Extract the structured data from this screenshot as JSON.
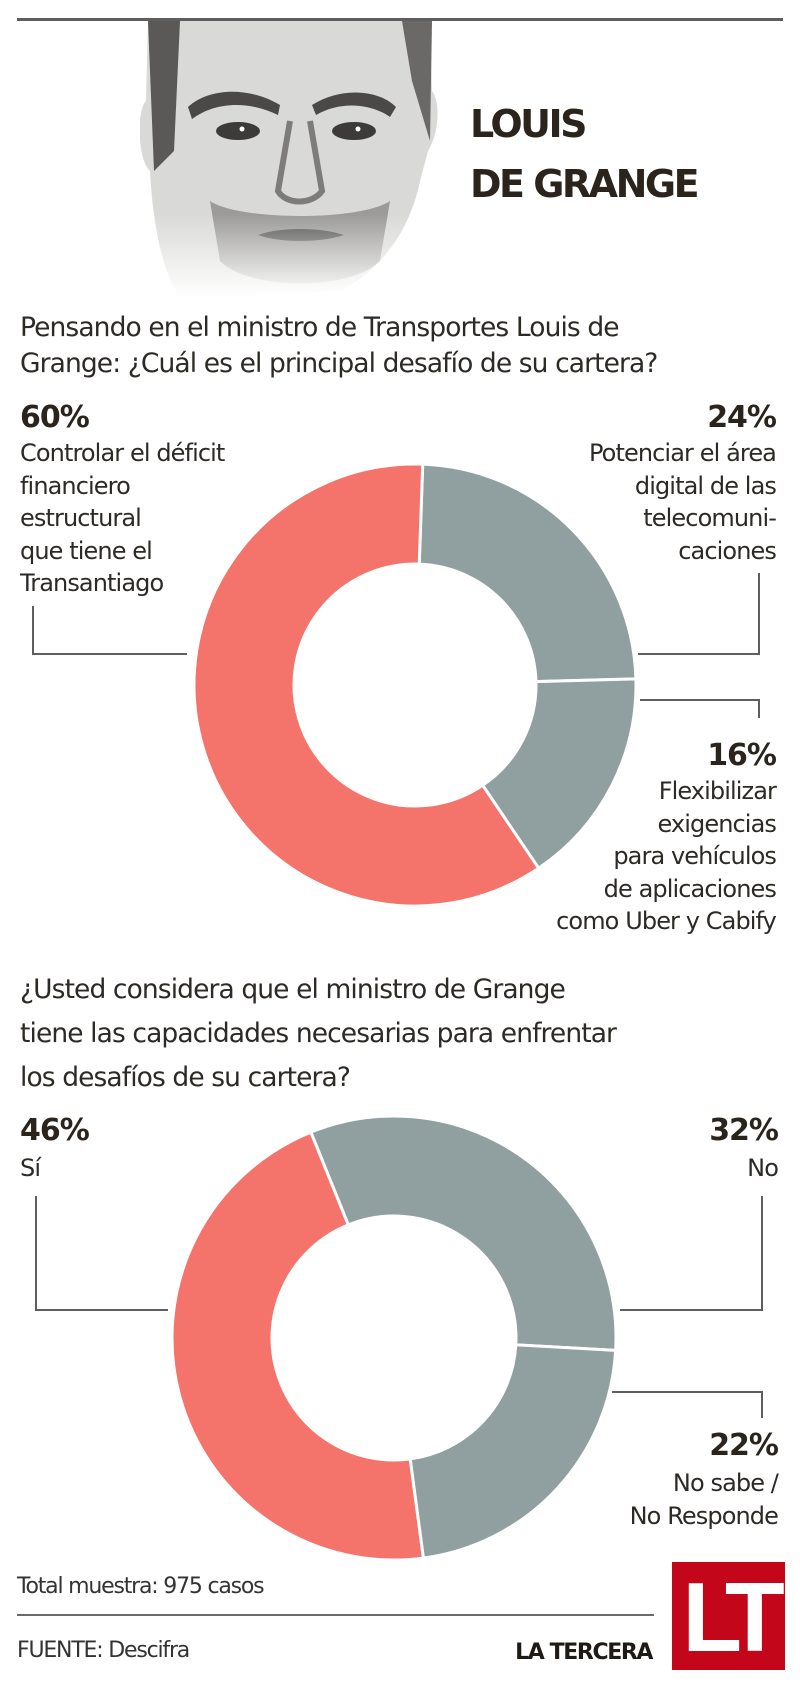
{
  "header": {
    "title_line1": "LOUIS",
    "title_line2": "DE GRANGE",
    "portrait": "portrait-illustration"
  },
  "colors": {
    "accent_red": "#f4736b",
    "slate_grey": "#90a0a0",
    "brand_red": "#c4061b",
    "text": "#2d2a26"
  },
  "chart_data": [
    {
      "type": "pie",
      "variant": "donut",
      "title": "Pensando en el ministro de Transportes Louis de Grange: ¿Cuál es el principal desafío de su cartera?",
      "title_lines": [
        "Pensando en el ministro de Transportes Louis de",
        "Grange: ¿Cuál es el principal desafío de su cartera?"
      ],
      "unit": "%",
      "start_angle_deg": 2,
      "slices": [
        {
          "label": "Potenciar el área digital de las telecomunicaciones",
          "value": 24,
          "pct_label": "24%",
          "label_lines": [
            "Potenciar el área",
            "digital de las",
            "telecomuni-",
            "caciones"
          ],
          "color": "#90a0a0"
        },
        {
          "label": "Flexibilizar exigencias para vehículos de aplicaciones como Uber y Cabify",
          "value": 16,
          "pct_label": "16%",
          "label_lines": [
            "Flexibilizar",
            "exigencias",
            "para vehículos",
            "de aplicaciones",
            "como Uber y Cabify"
          ],
          "color": "#90a0a0"
        },
        {
          "label": "Controlar el déficit financiero estructural que tiene el Transantiago",
          "value": 60,
          "pct_label": "60%",
          "label_lines": [
            "Controlar el déficit",
            "financiero",
            "estructural",
            "que tiene el",
            "Transantiago"
          ],
          "color": "#f4736b"
        }
      ]
    },
    {
      "type": "pie",
      "variant": "donut",
      "title": "¿Usted considera que el ministro de Grange tiene las capacidades necesarias para enfrentar los desafíos de su cartera?",
      "title_lines": [
        "¿Usted considera que el ministro de Grange",
        "tiene las capacidades necesarias para enfrentar",
        "los desafíos de su cartera?"
      ],
      "unit": "%",
      "start_angle_deg": -22,
      "slices": [
        {
          "label": "No",
          "value": 32,
          "pct_label": "32%",
          "label_lines": [
            "No"
          ],
          "color": "#90a0a0"
        },
        {
          "label": "No sabe / No Responde",
          "value": 22,
          "pct_label": "22%",
          "label_lines": [
            "No sabe /",
            "No Responde"
          ],
          "color": "#90a0a0"
        },
        {
          "label": "Sí",
          "value": 46,
          "pct_label": "46%",
          "label_lines": [
            "Sí"
          ],
          "color": "#f4736b"
        }
      ]
    }
  ],
  "footer": {
    "sample": "Total muestra: 975 casos",
    "source": "FUENTE: Descifra",
    "brand": "LA TERCERA",
    "logo_text": "LT"
  }
}
